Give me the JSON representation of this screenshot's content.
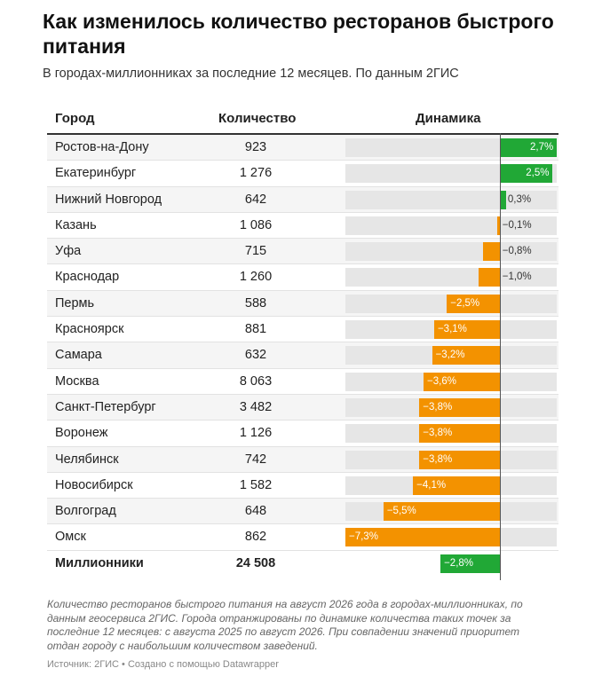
{
  "title": "Как изменилось количество ресторанов быстрого питания",
  "subtitle": "В городах-миллионниках за последние 12 месяцев. По данным 2ГИС",
  "columns": {
    "city": "Город",
    "count": "Количество",
    "dynamics": "Динамика"
  },
  "colors": {
    "positive": "#21a836",
    "negative": "#f39200",
    "track": "#e6e6e6"
  },
  "chart_data": {
    "type": "table",
    "unit": "%",
    "xlim": [
      -7.3,
      2.7
    ],
    "rows": [
      {
        "city": "Ростов-на-Дону",
        "count": "923",
        "change": 2.7,
        "label": "2,7%"
      },
      {
        "city": "Екатеринбург",
        "count": "1 276",
        "change": 2.5,
        "label": "2,5%"
      },
      {
        "city": "Нижний Новгород",
        "count": "642",
        "change": 0.3,
        "label": "0,3%"
      },
      {
        "city": "Казань",
        "count": "1 086",
        "change": -0.1,
        "label": "−0,1%"
      },
      {
        "city": "Уфа",
        "count": "715",
        "change": -0.8,
        "label": "−0,8%"
      },
      {
        "city": "Краснодар",
        "count": "1 260",
        "change": -1.0,
        "label": "−1,0%"
      },
      {
        "city": "Пермь",
        "count": "588",
        "change": -2.5,
        "label": "−2,5%"
      },
      {
        "city": "Красноярск",
        "count": "881",
        "change": -3.1,
        "label": "−3,1%"
      },
      {
        "city": "Самара",
        "count": "632",
        "change": -3.2,
        "label": "−3,2%"
      },
      {
        "city": "Москва",
        "count": "8 063",
        "change": -3.6,
        "label": "−3,6%"
      },
      {
        "city": "Санкт-Петербург",
        "count": "3 482",
        "change": -3.8,
        "label": "−3,8%"
      },
      {
        "city": "Воронеж",
        "count": "1 126",
        "change": -3.8,
        "label": "−3,8%"
      },
      {
        "city": "Челябинск",
        "count": "742",
        "change": -3.8,
        "label": "−3,8%"
      },
      {
        "city": "Новосибирск",
        "count": "1 582",
        "change": -4.1,
        "label": "−4,1%"
      },
      {
        "city": "Волгоград",
        "count": "648",
        "change": -5.5,
        "label": "−5,5%"
      },
      {
        "city": "Омск",
        "count": "862",
        "change": -7.3,
        "label": "−7,3%"
      }
    ],
    "total": {
      "city": "Миллионники",
      "count": "24 508",
      "change": -2.8,
      "label": "−2,8%",
      "color": "positive"
    }
  },
  "note": "Количество ресторанов быстрого питания на август 2026 года в городах-миллионниках, по данным геосервиса 2ГИС. Города отранжированы по динамике количества таких точек за последние 12 месяцев: с августа 2025 по август 2026. При совпадении значений приоритет отдан городу с наибольшим количеством заведений.",
  "source": "Источник: 2ГИС • Создано с помощью Datawrapper"
}
